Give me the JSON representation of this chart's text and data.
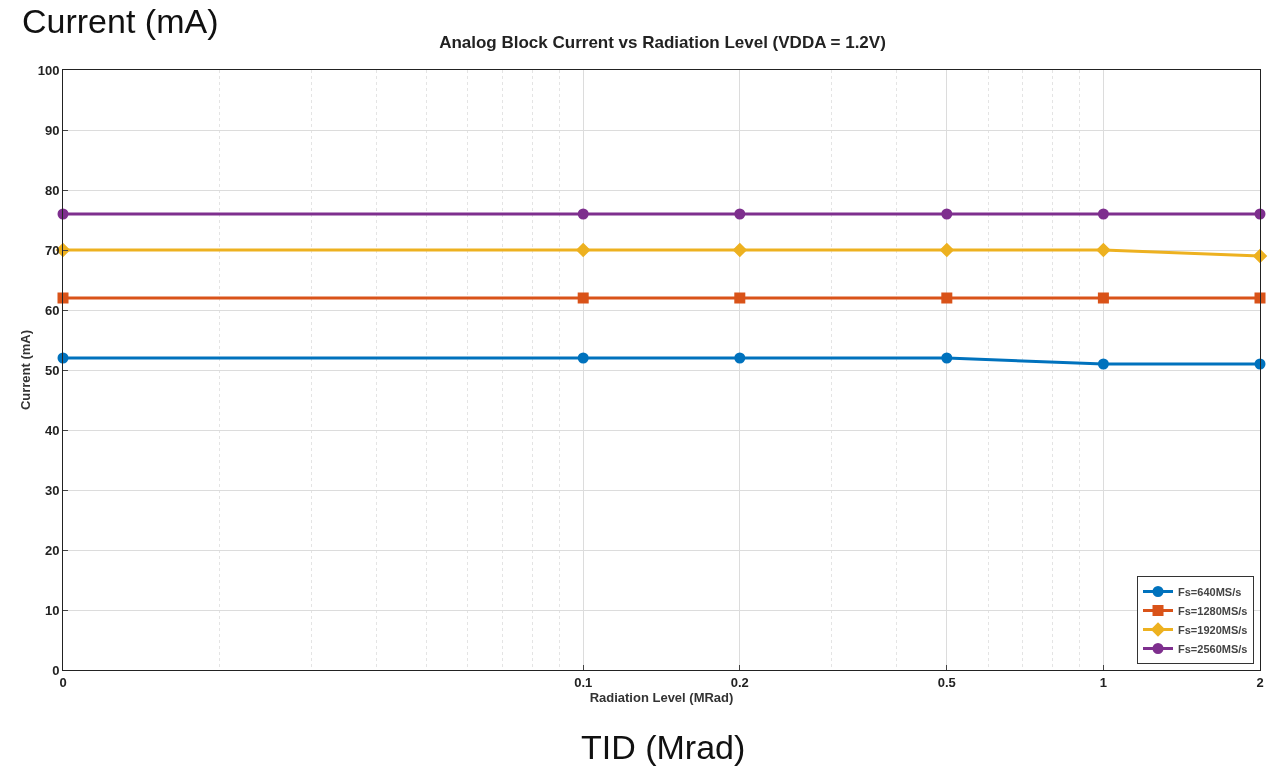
{
  "chart_data": {
    "type": "line",
    "title": "Analog Block Current vs Radiation Level (VDDA = 1.2V)",
    "xlabel": "Radiation Level (MRad)",
    "ylabel": "Current (mA)",
    "annotations": [
      "Current (mA)",
      "TID (Mrad)"
    ],
    "x": [
      0.01,
      0.1,
      0.2,
      0.5,
      1,
      2
    ],
    "series": [
      {
        "name": "Fs=640MS/s",
        "color": "#0072bd",
        "marker": "circle",
        "values": [
          52,
          52,
          52,
          52,
          51,
          51
        ]
      },
      {
        "name": "Fs=1280MS/s",
        "color": "#d95319",
        "marker": "square",
        "values": [
          62,
          62,
          62,
          62,
          62,
          62
        ]
      },
      {
        "name": "Fs=1920MS/s",
        "color": "#edb120",
        "marker": "diamond",
        "values": [
          70,
          70,
          70,
          70,
          70,
          69
        ]
      },
      {
        "name": "Fs=2560MS/s",
        "color": "#7e2f8e",
        "marker": "circle",
        "values": [
          76,
          76,
          76,
          76,
          76,
          76
        ]
      }
    ],
    "log": "x",
    "xlim": [
      0.01,
      2
    ],
    "xticks": [
      {
        "value": 0.01,
        "label": "0"
      },
      0.1,
      0.2,
      0.5,
      1,
      2
    ],
    "ylim": [
      0,
      100
    ],
    "yticks": [
      0,
      10,
      20,
      30,
      40,
      50,
      60,
      70,
      80,
      90,
      100
    ],
    "grid": true,
    "legend": "bottom right",
    "line_style": "solid"
  }
}
